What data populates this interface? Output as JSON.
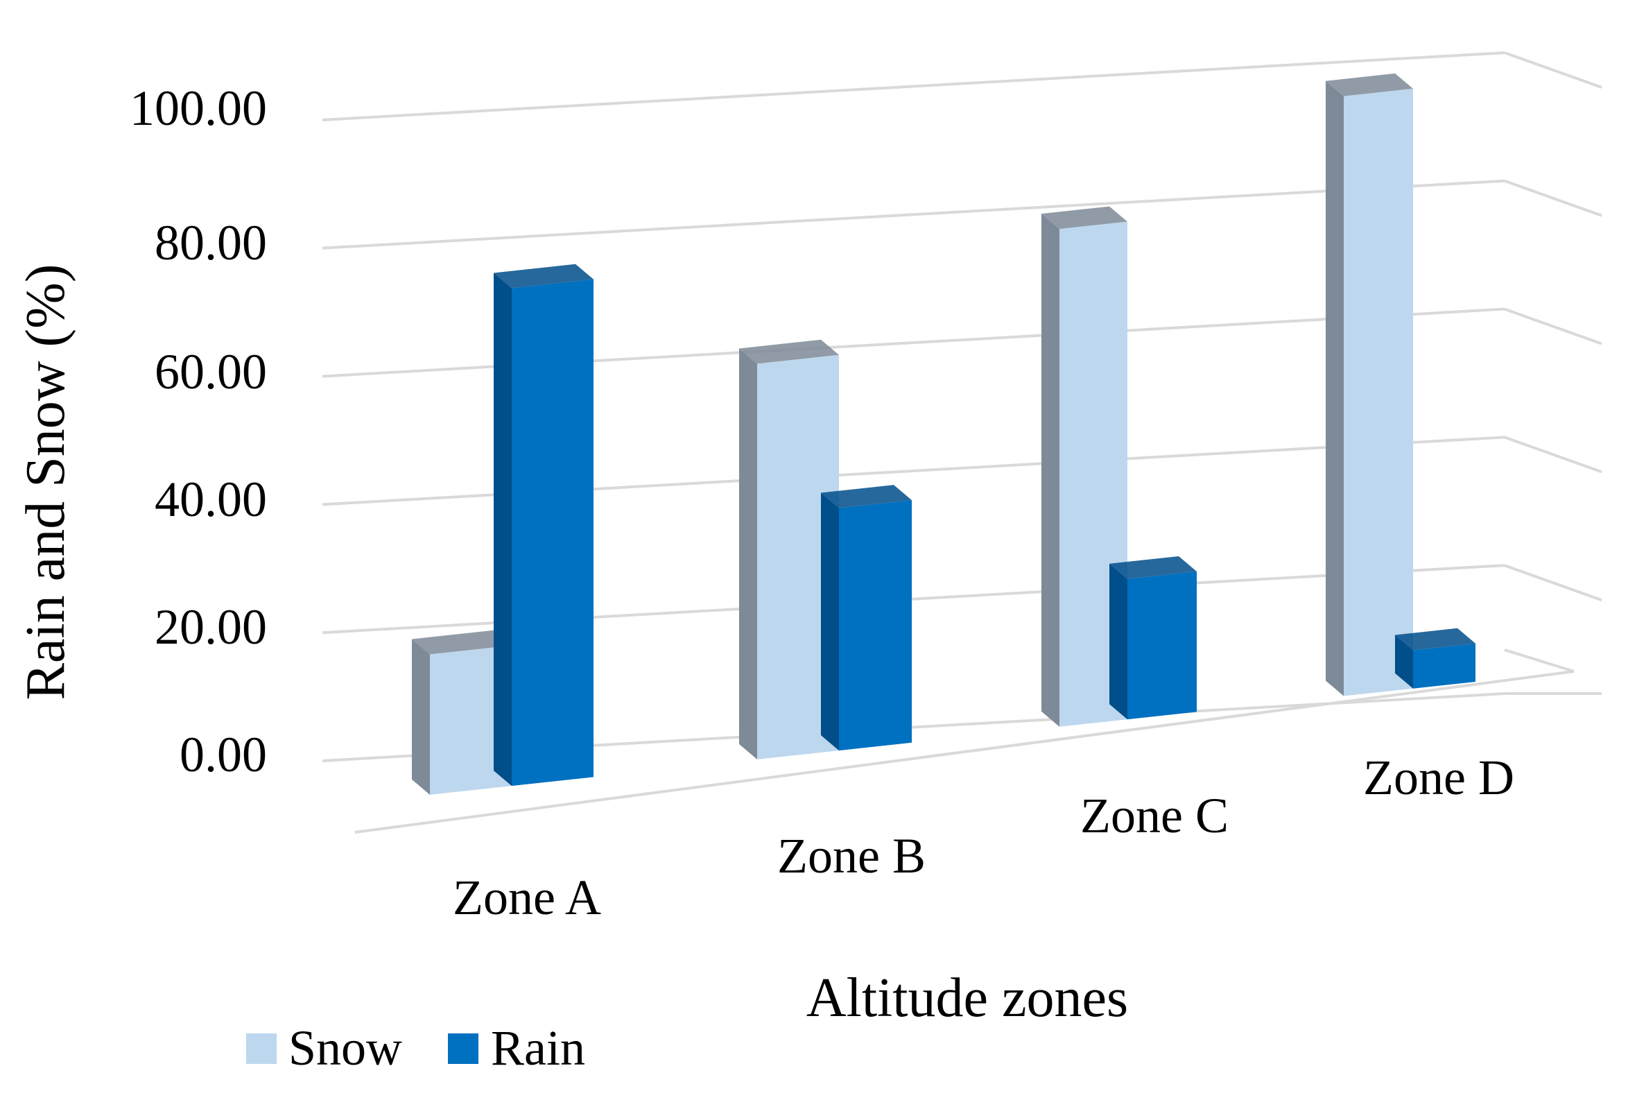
{
  "chart_data": {
    "type": "bar",
    "style": "3d-clustered-column",
    "title": "",
    "xlabel": "Altitude zones",
    "ylabel": "Rain and Snow (%)",
    "ylim": [
      0,
      100
    ],
    "yticks": [
      "0.00",
      "20.00",
      "40.00",
      "60.00",
      "80.00",
      "100.00"
    ],
    "categories": [
      "Zone A",
      "Zone B",
      "Zone C",
      "Zone D"
    ],
    "series": [
      {
        "name": "Snow",
        "color": "#BDD7EE",
        "side_color": "#7E8A98",
        "values": [
          22,
          62,
          78,
          94
        ]
      },
      {
        "name": "Rain",
        "color": "#0070C0",
        "side_color": "#004E8A",
        "values": [
          78,
          38,
          22,
          6
        ]
      }
    ],
    "grid": true,
    "legend_position": "bottom-left"
  }
}
